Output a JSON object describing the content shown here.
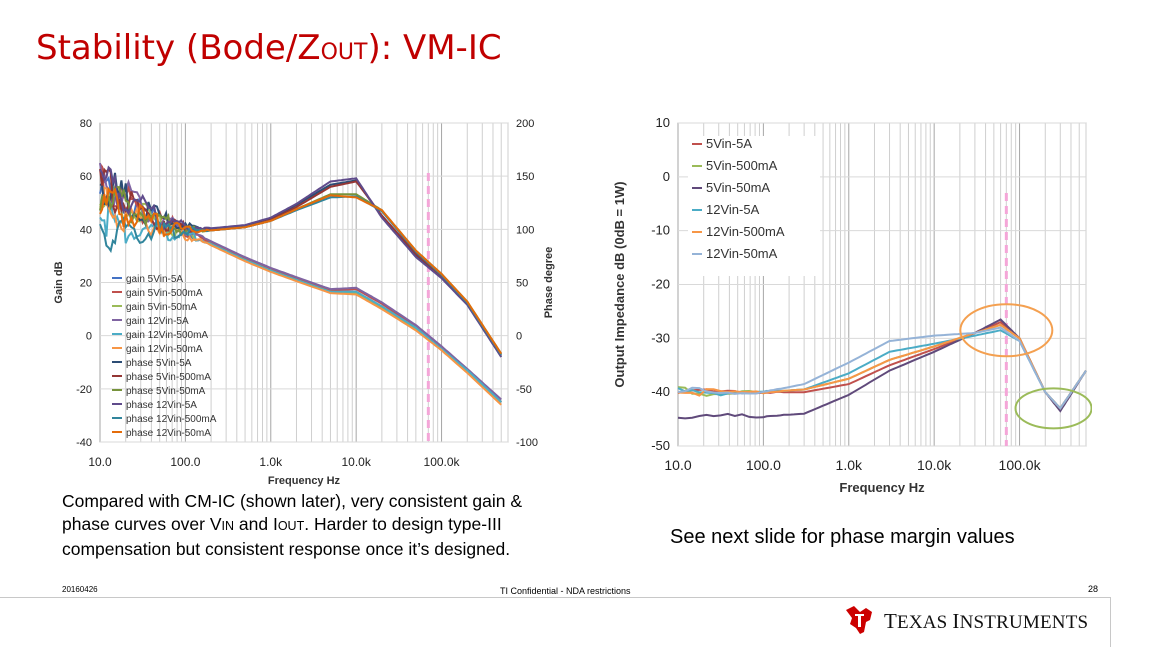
{
  "slide": {
    "title_main": "Stability (Bode/Z",
    "title_sub": "OUT",
    "title_rest": "):  VM-IC",
    "note_left": {
      "line1": "Compared with CM-IC (shown later), very consistent gain &",
      "line2a": "phase curves over V",
      "line2b": "IN",
      "line2c": " and I",
      "line2d": "OUT",
      "line2e": ". Harder to design type-III",
      "line3": "compensation but consistent response once it’s designed."
    },
    "note_right": "See next slide for phase margin values",
    "date": "20160426",
    "confidential": "TI Confidential - NDA restrictions",
    "page_number": "28",
    "logo": {
      "name_part1": "T",
      "name_part2": "EXAS ",
      "name_part3": "I",
      "name_part4": "NSTRUMENTS",
      "brand_color": "#cc0000"
    }
  },
  "chart_data": [
    {
      "type": "line",
      "xlabel": "Frequency Hz",
      "ylabel": "Gain dB",
      "y2label": "Phase degree",
      "x_scale": "log",
      "xlim": [
        10,
        600000
      ],
      "ylim": [
        -40,
        80
      ],
      "y2lim": [
        -100,
        200
      ],
      "x_ticks": [
        "10.0",
        "100.0",
        "1.0k",
        "10.0k",
        "100.0k"
      ],
      "y_ticks": [
        "80",
        "60",
        "40",
        "20",
        "0",
        "-20",
        "-40"
      ],
      "y2_ticks": [
        "200",
        "150",
        "100",
        "50",
        "0",
        "-50",
        "-100"
      ],
      "grid": true,
      "legend_position": "lower-left",
      "marker_line_x": 70000,
      "marker_line_color": "#f4a6d8",
      "series": [
        {
          "name": "gain 5Vin-5A",
          "axis": "left",
          "color": "#4472c4",
          "x": [
            10,
            20,
            50,
            100,
            200,
            500,
            1000,
            2000,
            5000,
            10000,
            20000,
            50000,
            100000,
            200000,
            500000
          ],
          "y": [
            55,
            50,
            43,
            38.5,
            34.5,
            28.5,
            24.5,
            21,
            16.5,
            16.5,
            11,
            3,
            -5,
            -13,
            -25
          ]
        },
        {
          "name": "gain 5Vin-500mA",
          "axis": "left",
          "color": "#c0504d",
          "x": [
            10,
            20,
            50,
            100,
            200,
            500,
            1000,
            2000,
            5000,
            10000,
            20000,
            50000,
            100000,
            200000,
            500000
          ],
          "y": [
            56,
            51,
            44,
            39,
            35,
            29,
            25,
            21.5,
            17,
            17.5,
            12,
            3.5,
            -4.5,
            -13,
            -25
          ]
        },
        {
          "name": "gain 5Vin-50mA",
          "axis": "left",
          "color": "#9bbb59",
          "x": [
            10,
            20,
            50,
            100,
            200,
            500,
            1000,
            2000,
            5000,
            10000,
            20000,
            50000,
            100000,
            200000,
            500000
          ],
          "y": [
            52,
            48,
            42,
            38,
            34.5,
            28.5,
            24.5,
            21,
            16.5,
            16,
            10.5,
            2.5,
            -5,
            -13.5,
            -25
          ]
        },
        {
          "name": "gain 12Vin-5A",
          "axis": "left",
          "color": "#8064a2",
          "x": [
            10,
            20,
            50,
            100,
            200,
            500,
            1000,
            2000,
            5000,
            10000,
            20000,
            50000,
            100000,
            200000,
            500000
          ],
          "y": [
            58,
            52,
            44.5,
            39.5,
            35.5,
            29.5,
            25.5,
            22,
            17.5,
            18,
            12.5,
            4,
            -4,
            -12.5,
            -24
          ]
        },
        {
          "name": "gain 12Vin-500mA",
          "axis": "left",
          "color": "#4bacc6",
          "x": [
            10,
            20,
            50,
            100,
            200,
            500,
            1000,
            2000,
            5000,
            10000,
            20000,
            50000,
            100000,
            200000,
            500000
          ],
          "y": [
            45,
            41,
            39.5,
            38.5,
            34.5,
            28.5,
            24.5,
            21,
            16.5,
            16.5,
            11,
            3,
            -5,
            -13,
            -25
          ]
        },
        {
          "name": "gain 12Vin-50mA",
          "axis": "left",
          "color": "#f79646",
          "x": [
            10,
            20,
            50,
            100,
            200,
            500,
            1000,
            2000,
            5000,
            10000,
            20000,
            50000,
            100000,
            200000,
            500000
          ],
          "y": [
            48,
            45,
            41,
            38,
            34,
            28,
            24,
            20.5,
            16,
            15.5,
            10,
            2,
            -5.5,
            -14,
            -26
          ]
        },
        {
          "name": "phase 5Vin-5A",
          "axis": "right",
          "color": "#2c4d75",
          "x": [
            10,
            20,
            50,
            100,
            200,
            500,
            1000,
            2000,
            5000,
            10000,
            20000,
            50000,
            100000,
            200000,
            500000
          ],
          "y": [
            145,
            128,
            110,
            102,
            100,
            103,
            110,
            123,
            142,
            146,
            112,
            75,
            55,
            30,
            -20
          ]
        },
        {
          "name": "phase 5Vin-500mA",
          "axis": "right",
          "color": "#943634",
          "x": [
            10,
            20,
            50,
            100,
            200,
            500,
            1000,
            2000,
            5000,
            10000,
            20000,
            50000,
            100000,
            200000,
            500000
          ],
          "y": [
            142,
            126,
            109,
            101,
            99,
            102,
            109,
            121,
            140,
            145,
            113,
            77,
            56,
            31,
            -18
          ]
        },
        {
          "name": "phase 5Vin-50mA",
          "axis": "right",
          "color": "#77933c",
          "x": [
            10,
            20,
            50,
            100,
            200,
            500,
            1000,
            2000,
            5000,
            10000,
            20000,
            50000,
            100000,
            200000,
            500000
          ],
          "y": [
            138,
            124,
            108,
            100,
            99,
            102,
            108,
            119,
            133,
            133,
            118,
            80,
            58,
            32,
            -17
          ]
        },
        {
          "name": "phase 12Vin-5A",
          "axis": "right",
          "color": "#5f4b8b",
          "x": [
            10,
            20,
            50,
            100,
            200,
            500,
            1000,
            2000,
            5000,
            10000,
            20000,
            50000,
            100000,
            200000,
            500000
          ],
          "y": [
            150,
            130,
            111,
            103,
            101,
            104,
            111,
            124,
            145,
            148,
            111,
            74,
            54,
            29,
            -20
          ]
        },
        {
          "name": "phase 12Vin-500mA",
          "axis": "right",
          "color": "#31859c",
          "x": [
            10,
            20,
            50,
            100,
            200,
            500,
            1000,
            2000,
            5000,
            10000,
            20000,
            50000,
            100000,
            200000,
            500000
          ],
          "y": [
            100,
            99,
            98,
            99,
            99,
            102,
            108,
            118,
            130,
            131,
            117,
            79,
            57,
            31,
            -18
          ]
        },
        {
          "name": "phase 12Vin-50mA",
          "axis": "right",
          "color": "#e46c0a",
          "x": [
            10,
            20,
            50,
            100,
            200,
            500,
            1000,
            2000,
            5000,
            10000,
            20000,
            50000,
            100000,
            200000,
            500000
          ],
          "y": [
            125,
            115,
            103,
            100,
            99,
            102,
            108,
            119,
            132,
            130,
            118,
            80,
            58,
            32,
            -17
          ]
        }
      ]
    },
    {
      "type": "line",
      "xlabel": "Frequency Hz",
      "ylabel": "Output Impedance dB (0dB = 1W)",
      "x_scale": "log",
      "xlim": [
        10,
        600000
      ],
      "ylim": [
        -50,
        10
      ],
      "x_ticks": [
        "10.0",
        "100.0",
        "1.0k",
        "10.0k",
        "100.0k"
      ],
      "y_ticks": [
        "10",
        "0",
        "-10",
        "-20",
        "-30",
        "-40",
        "-50"
      ],
      "grid": true,
      "legend_position": "top-left",
      "marker_line_x": 70000,
      "marker_line_color": "#f4a6d8",
      "annotations": [
        {
          "shape": "ellipse",
          "color": "#f4a050",
          "center_x": 70000,
          "center_y": -28.5
        },
        {
          "shape": "ellipse",
          "color": "#9bbb59",
          "center_x": 250000,
          "center_y": -43
        }
      ],
      "series": [
        {
          "name": "5Vin-5A",
          "color": "#c0504d",
          "x": [
            10,
            100,
            300,
            1000,
            3000,
            10000,
            30000,
            60000,
            100000,
            200000,
            300000,
            600000
          ],
          "y": [
            -40,
            -40,
            -40,
            -38.5,
            -35,
            -32,
            -29,
            -27,
            -30,
            -40,
            -43,
            -36
          ]
        },
        {
          "name": "5Vin-500mA",
          "color": "#9bbb59",
          "x": [
            10,
            100,
            300,
            1000,
            3000,
            10000,
            30000,
            60000,
            100000,
            200000,
            300000,
            600000
          ],
          "y": [
            -40,
            -40,
            -39.5,
            -37.5,
            -34,
            -31.5,
            -29,
            -27.5,
            -30,
            -40,
            -43,
            -36
          ]
        },
        {
          "name": "5Vin-50mA",
          "color": "#604a7b",
          "x": [
            10,
            100,
            300,
            1000,
            3000,
            10000,
            30000,
            60000,
            100000,
            200000,
            300000,
            600000
          ],
          "y": [
            -44.5,
            -44.5,
            -44,
            -40.5,
            -36,
            -32.5,
            -29,
            -26.5,
            -30,
            -40,
            -43.5,
            -36
          ]
        },
        {
          "name": "12Vin-5A",
          "color": "#4bacc6",
          "x": [
            10,
            100,
            300,
            1000,
            3000,
            10000,
            30000,
            60000,
            100000,
            200000,
            300000,
            600000
          ],
          "y": [
            -40,
            -40,
            -39.5,
            -36.5,
            -32.5,
            -31,
            -29.5,
            -28.5,
            -30.5,
            -40,
            -43,
            -36
          ]
        },
        {
          "name": "12Vin-500mA",
          "color": "#f79646",
          "x": [
            10,
            100,
            300,
            1000,
            3000,
            10000,
            30000,
            60000,
            100000,
            200000,
            300000,
            600000
          ],
          "y": [
            -40,
            -40,
            -39.5,
            -37.5,
            -34,
            -31.5,
            -29,
            -27.5,
            -30,
            -40,
            -43,
            -36
          ]
        },
        {
          "name": "12Vin-50mA",
          "color": "#95b3d7",
          "x": [
            10,
            100,
            300,
            1000,
            3000,
            10000,
            30000,
            60000,
            100000,
            200000,
            300000,
            600000
          ],
          "y": [
            -40,
            -40,
            -38.5,
            -34.5,
            -30.5,
            -29.5,
            -29,
            -28,
            -30.5,
            -40,
            -43,
            -36
          ]
        }
      ]
    }
  ]
}
